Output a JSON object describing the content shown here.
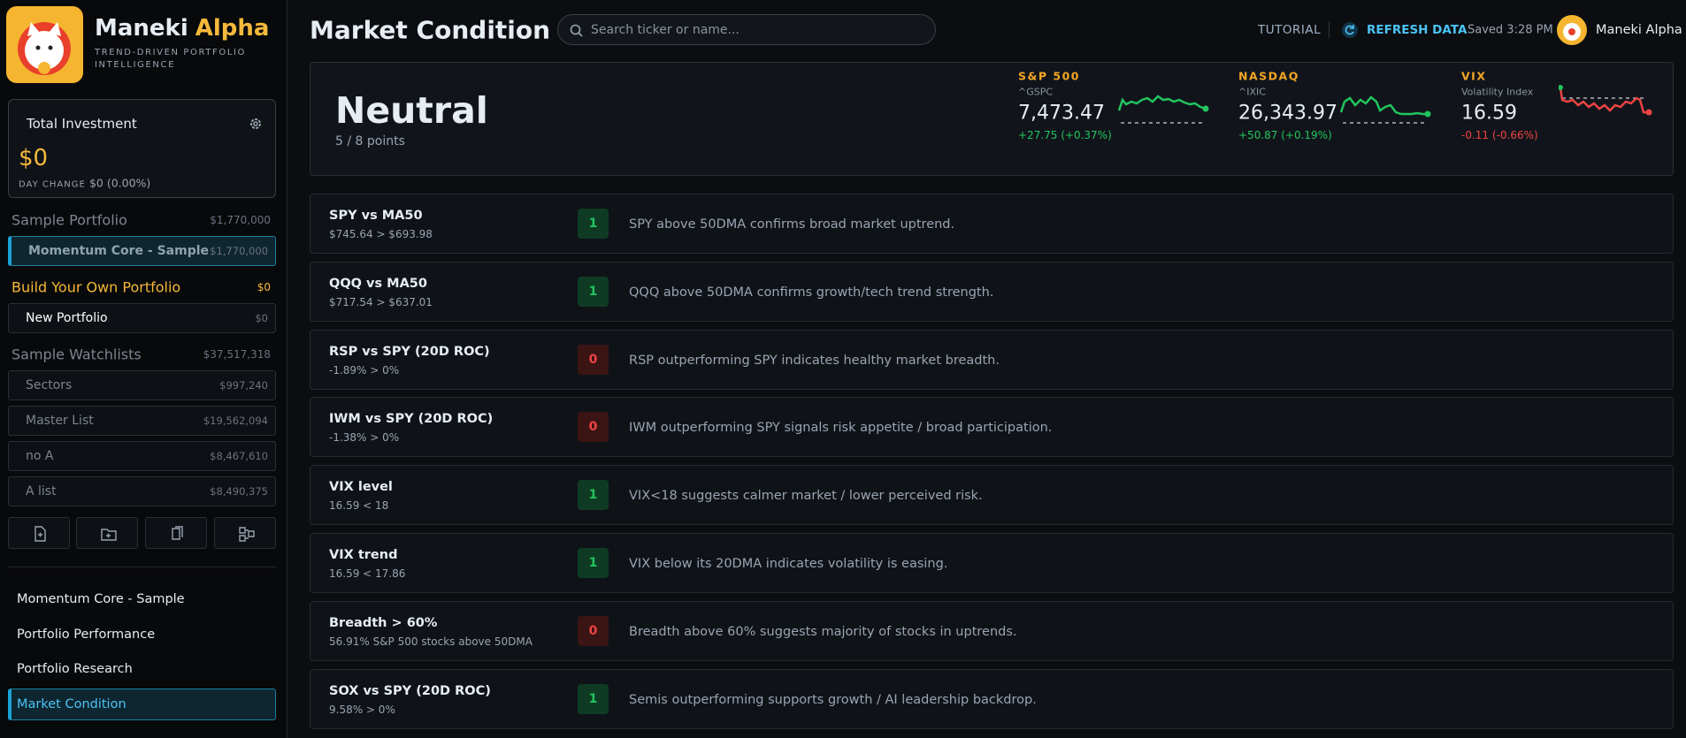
{
  "sidebar": {
    "brand": {
      "name": "Maneki",
      "accent": "Alpha",
      "tagline": "TREND-DRIVEN PORTFOLIO INTELLIGENCE"
    },
    "investment": {
      "label": "Total Investment",
      "value": "$0",
      "day_change_label": "DAY CHANGE",
      "day_change_value": "$0 (0.00%)"
    },
    "groups": [
      {
        "name": "Sample Portfolio",
        "total": "$1,770,000",
        "items": [
          {
            "name": "Momentum Core - Sample",
            "value": "$1,770,000"
          }
        ]
      },
      {
        "name": "Build Your Own Portfolio",
        "total": "$0",
        "items": [
          {
            "name": "New Portfolio",
            "value": "$0"
          }
        ]
      },
      {
        "name": "Sample Watchlists",
        "total": "$37,517,318",
        "items": [
          {
            "name": "Sectors",
            "value": "$997,240"
          },
          {
            "name": "Master List",
            "value": "$19,562,094"
          },
          {
            "name": "no A",
            "value": "$8,467,610"
          },
          {
            "name": "A list",
            "value": "$8,490,375"
          }
        ]
      }
    ],
    "nav": [
      "Momentum Core - Sample",
      "Portfolio Performance",
      "Portfolio Research",
      "Market Condition"
    ]
  },
  "header": {
    "title": "Market Condition",
    "search_placeholder": "Search ticker or name...",
    "tutorial": "TUTORIAL",
    "refresh": "REFRESH DATA",
    "saved": "Saved 3:28 PM",
    "user": "Maneki Alpha"
  },
  "hero": {
    "status": "Neutral",
    "points": "5 / 8 points",
    "indices": [
      {
        "name": "S&P 500",
        "symbol": "^GSPC",
        "price": "7,473.47",
        "change": "+27.75 (+0.37%)"
      },
      {
        "name": "NASDAQ",
        "symbol": "^IXIC",
        "price": "26,343.97",
        "change": "+50.87 (+0.19%)"
      },
      {
        "name": "VIX",
        "symbol": "Volatility Index",
        "price": "16.59",
        "change": "-0.11 (-0.66%)"
      }
    ]
  },
  "signals": [
    {
      "name": "SPY vs MA50",
      "detail": "$745.64 > $693.98",
      "score": 1,
      "description": "SPY above 50DMA confirms broad market uptrend."
    },
    {
      "name": "QQQ vs MA50",
      "detail": "$717.54 > $637.01",
      "score": 1,
      "description": "QQQ above 50DMA confirms growth/tech trend strength."
    },
    {
      "name": "RSP vs SPY (20D ROC)",
      "detail": "-1.89% > 0%",
      "score": 0,
      "description": "RSP outperforming SPY indicates healthy market breadth."
    },
    {
      "name": "IWM vs SPY (20D ROC)",
      "detail": "-1.38% > 0%",
      "score": 0,
      "description": "IWM outperforming SPY signals risk appetite / broad participation."
    },
    {
      "name": "VIX level",
      "detail": "16.59 < 18",
      "score": 1,
      "description": "VIX<18 suggests calmer market / lower perceived risk."
    },
    {
      "name": "VIX trend",
      "detail": "16.59 < 17.86",
      "score": 1,
      "description": "VIX below its 20DMA indicates volatility is easing."
    },
    {
      "name": "Breadth > 60%",
      "detail": "56.91% S&P 500 stocks above 50DMA",
      "score": 0,
      "description": "Breadth above 60% suggests majority of stocks in uptrends."
    },
    {
      "name": "SOX vs SPY (20D ROC)",
      "detail": "9.58% > 0%",
      "score": 1,
      "description": "Semis outperforming supports growth / AI leadership backdrop."
    }
  ]
}
